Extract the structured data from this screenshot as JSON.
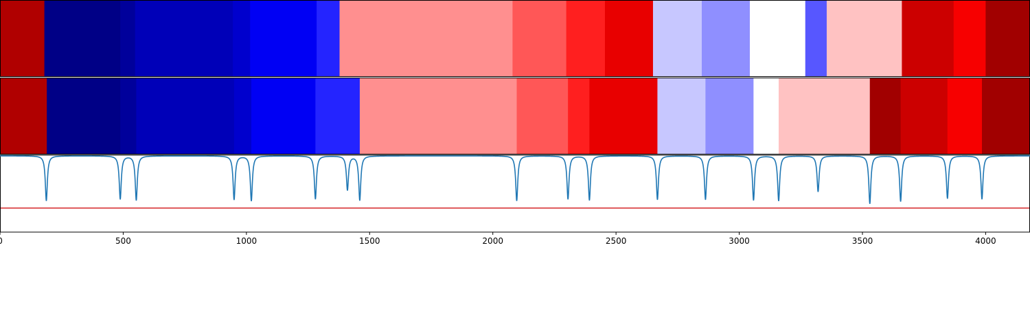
{
  "chart_data": {
    "type": "heatmap",
    "title": "",
    "xlabel": "",
    "ylabel": "",
    "xlim": [
      0,
      4180
    ],
    "x_ticks": [
      0,
      500,
      1000,
      1500,
      2000,
      2500,
      3000,
      3500,
      4000
    ],
    "x_tick_labels": [
      "0",
      "500",
      "1000",
      "1500",
      "2000",
      "2500",
      "3000",
      "3500",
      "4000"
    ],
    "grid": false,
    "legend": "none",
    "colormap": "seismic",
    "strips": [
      {
        "segments": [
          {
            "start": 0,
            "end": 180,
            "value": 0.81
          },
          {
            "start": 180,
            "end": 488,
            "value": -0.84
          },
          {
            "start": 488,
            "end": 548,
            "value": -0.78
          },
          {
            "start": 548,
            "end": 945,
            "value": -0.7
          },
          {
            "start": 945,
            "end": 1015,
            "value": -0.64
          },
          {
            "start": 1015,
            "end": 1285,
            "value": -0.53
          },
          {
            "start": 1285,
            "end": 1378,
            "value": -0.43
          },
          {
            "start": 1378,
            "end": 2080,
            "value": 0.22
          },
          {
            "start": 2080,
            "end": 2298,
            "value": 0.33
          },
          {
            "start": 2298,
            "end": 2455,
            "value": 0.44
          },
          {
            "start": 2455,
            "end": 2650,
            "value": 0.59
          },
          {
            "start": 2650,
            "end": 2848,
            "value": -0.11
          },
          {
            "start": 2848,
            "end": 3043,
            "value": -0.22
          },
          {
            "start": 3043,
            "end": 3268,
            "value": 0.0
          },
          {
            "start": 3268,
            "end": 3355,
            "value": -0.33
          },
          {
            "start": 3355,
            "end": 3660,
            "value": 0.12
          },
          {
            "start": 3660,
            "end": 3870,
            "value": 0.7
          },
          {
            "start": 3870,
            "end": 4000,
            "value": 0.53
          },
          {
            "start": 4000,
            "end": 4180,
            "value": 0.87
          }
        ]
      },
      {
        "segments": [
          {
            "start": 0,
            "end": 190,
            "value": 0.81
          },
          {
            "start": 190,
            "end": 488,
            "value": -0.84
          },
          {
            "start": 488,
            "end": 553,
            "value": -0.78
          },
          {
            "start": 553,
            "end": 950,
            "value": -0.7
          },
          {
            "start": 950,
            "end": 1020,
            "value": -0.64
          },
          {
            "start": 1020,
            "end": 1280,
            "value": -0.53
          },
          {
            "start": 1280,
            "end": 1460,
            "value": -0.43
          },
          {
            "start": 1460,
            "end": 2097,
            "value": 0.22
          },
          {
            "start": 2097,
            "end": 2305,
            "value": 0.33
          },
          {
            "start": 2305,
            "end": 2392,
            "value": 0.44
          },
          {
            "start": 2392,
            "end": 2668,
            "value": 0.59
          },
          {
            "start": 2668,
            "end": 2863,
            "value": -0.11
          },
          {
            "start": 2863,
            "end": 3058,
            "value": -0.22
          },
          {
            "start": 3058,
            "end": 3160,
            "value": 0.0
          },
          {
            "start": 3160,
            "end": 3530,
            "value": 0.12
          },
          {
            "start": 3530,
            "end": 3655,
            "value": 0.87
          },
          {
            "start": 3655,
            "end": 3845,
            "value": 0.7
          },
          {
            "start": 3845,
            "end": 3985,
            "value": 0.53
          },
          {
            "start": 3985,
            "end": 4180,
            "value": 0.87
          }
        ]
      }
    ],
    "line": {
      "color": "#1f77b4",
      "dips": [
        {
          "x": 188,
          "depth": 0.79
        },
        {
          "x": 488,
          "depth": 0.76
        },
        {
          "x": 553,
          "depth": 0.78
        },
        {
          "x": 950,
          "depth": 0.77
        },
        {
          "x": 1020,
          "depth": 0.79
        },
        {
          "x": 1280,
          "depth": 0.76
        },
        {
          "x": 1410,
          "depth": 0.6
        },
        {
          "x": 1460,
          "depth": 0.78
        },
        {
          "x": 2097,
          "depth": 0.79
        },
        {
          "x": 2305,
          "depth": 0.76
        },
        {
          "x": 2392,
          "depth": 0.78
        },
        {
          "x": 2668,
          "depth": 0.77
        },
        {
          "x": 2863,
          "depth": 0.77
        },
        {
          "x": 3058,
          "depth": 0.78
        },
        {
          "x": 3160,
          "depth": 0.79
        },
        {
          "x": 3320,
          "depth": 0.63
        },
        {
          "x": 3530,
          "depth": 0.84
        },
        {
          "x": 3655,
          "depth": 0.8
        },
        {
          "x": 3845,
          "depth": 0.75
        },
        {
          "x": 3985,
          "depth": 0.76
        }
      ]
    },
    "reference_line": {
      "color": "#d62728"
    }
  }
}
